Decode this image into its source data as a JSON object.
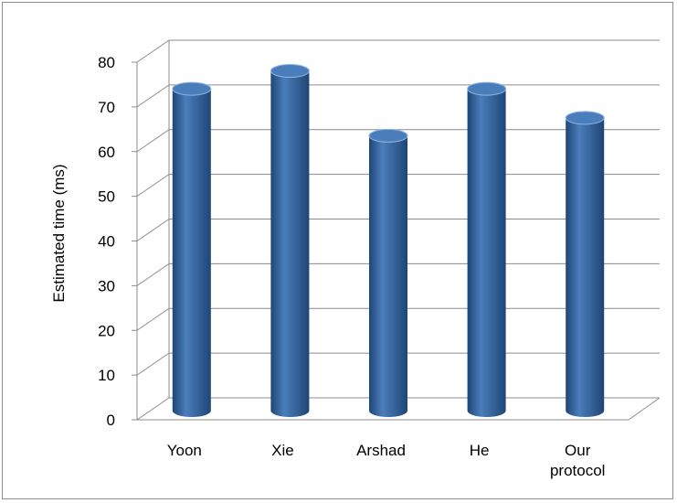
{
  "chart_data": {
    "type": "bar",
    "style": "3d-cylinder",
    "title": "",
    "xlabel": "",
    "ylabel": "Estimated time (ms)",
    "categories": [
      [
        "Yoon"
      ],
      [
        "Xie"
      ],
      [
        "Arshad"
      ],
      [
        "He"
      ],
      [
        "Our",
        "protocol"
      ]
    ],
    "values": [
      72,
      76,
      61.5,
      72,
      65.5
    ],
    "ylim": [
      0,
      80
    ],
    "yticks": [
      0,
      10,
      20,
      30,
      40,
      50,
      60,
      70,
      80
    ],
    "grid": true,
    "legend": "none",
    "bar_color": "#4a7ebb",
    "bar_color_dark": "#1f4576",
    "bar_color_light": "#8fb4e3",
    "gridline_color": "#8c8c8c"
  }
}
